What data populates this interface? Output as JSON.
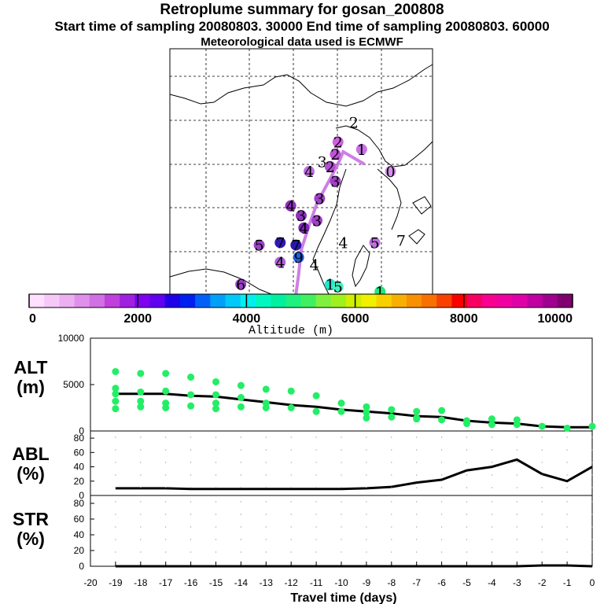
{
  "header": {
    "title": "Retroplume summary for gosan_200808",
    "sampling": "Start time of sampling 20080803. 30000     End time of sampling 20080803. 60000",
    "met": "Meteorological data used is ECMWF"
  },
  "map": {
    "markers": [
      {
        "label": "2",
        "lon": 0.7,
        "lat": 0.3,
        "color": "#ffffff"
      },
      {
        "label": "2",
        "lon": 0.64,
        "lat": 0.38,
        "color": "#d060e0"
      },
      {
        "label": "2",
        "lon": 0.63,
        "lat": 0.43,
        "color": "#c050d8"
      },
      {
        "label": "1",
        "lon": 0.73,
        "lat": 0.41,
        "color": "#c870e8"
      },
      {
        "label": "3",
        "lon": 0.58,
        "lat": 0.46,
        "color": "#ffffff"
      },
      {
        "label": "2",
        "lon": 0.61,
        "lat": 0.48,
        "color": "#b050d0"
      },
      {
        "label": "4",
        "lon": 0.53,
        "lat": 0.5,
        "color": "#c070e0"
      },
      {
        "label": "0",
        "lon": 0.84,
        "lat": 0.5,
        "color": "#d090e8"
      },
      {
        "label": "3",
        "lon": 0.63,
        "lat": 0.54,
        "color": "#a040c8"
      },
      {
        "label": "3",
        "lon": 0.57,
        "lat": 0.61,
        "color": "#a040c8"
      },
      {
        "label": "4",
        "lon": 0.46,
        "lat": 0.64,
        "color": "#9030c0"
      },
      {
        "label": "3",
        "lon": 0.5,
        "lat": 0.68,
        "color": "#9030c0"
      },
      {
        "label": "3",
        "lon": 0.56,
        "lat": 0.7,
        "color": "#a040c8"
      },
      {
        "label": "4",
        "lon": 0.51,
        "lat": 0.73,
        "color": "#7a28b8"
      },
      {
        "label": "7",
        "lon": 0.42,
        "lat": 0.79,
        "color": "#3018b0"
      },
      {
        "label": "7",
        "lon": 0.48,
        "lat": 0.8,
        "color": "#2818a8"
      },
      {
        "label": "5",
        "lon": 0.34,
        "lat": 0.8,
        "color": "#9a40c8"
      },
      {
        "label": "4",
        "lon": 0.66,
        "lat": 0.79,
        "color": "#ffffff"
      },
      {
        "label": "5",
        "lon": 0.78,
        "lat": 0.79,
        "color": "#c070e0"
      },
      {
        "label": "7",
        "lon": 0.88,
        "lat": 0.78,
        "color": "#ffffff"
      },
      {
        "label": "9",
        "lon": 0.49,
        "lat": 0.85,
        "color": "#2060d8"
      },
      {
        "label": "4",
        "lon": 0.42,
        "lat": 0.87,
        "color": "#b060d8"
      },
      {
        "label": "4",
        "lon": 0.55,
        "lat": 0.88,
        "color": "#ffffff"
      },
      {
        "label": "6",
        "lon": 0.27,
        "lat": 0.96,
        "color": "#9a40c8"
      },
      {
        "label": "1",
        "lon": 0.61,
        "lat": 0.96,
        "color": "#20e8d0"
      },
      {
        "label": "5",
        "lon": 0.64,
        "lat": 0.97,
        "color": "#40f0c0"
      },
      {
        "label": "1",
        "lon": 0.8,
        "lat": 0.99,
        "color": "#20e880"
      }
    ]
  },
  "colorbar": {
    "labels": [
      "0",
      "2000",
      "4000",
      "6000",
      "8000",
      "10000"
    ],
    "title": "Altitude (m)",
    "colors": [
      "#ffe0ff",
      "#f5c8f8",
      "#ecb0f2",
      "#e090ea",
      "#d070e4",
      "#c040dc",
      "#a020e0",
      "#8000f0",
      "#6000f0",
      "#2000e8",
      "#0020f0",
      "#0060f8",
      "#00a0f8",
      "#00c8f8",
      "#00f0f0",
      "#00f8c0",
      "#00f0a0",
      "#20f080",
      "#40f060",
      "#80f040",
      "#a0f020",
      "#d0f000",
      "#f0f000",
      "#f8d000",
      "#f8b000",
      "#f89000",
      "#f87000",
      "#f84000",
      "#f80000",
      "#f80060",
      "#f80090",
      "#f000a0",
      "#e000a8",
      "#c000a0",
      "#a00090",
      "#800070"
    ]
  },
  "panels": {
    "alt": {
      "label": "ALT\n(m)",
      "ticks": [
        "10000",
        "5000",
        "0"
      ]
    },
    "abl": {
      "label": "ABL\n(%)",
      "ticks": [
        "80",
        "60",
        "40",
        "20",
        "0"
      ]
    },
    "str": {
      "label": "STR\n(%)",
      "ticks": [
        "80",
        "60",
        "40",
        "20",
        "0"
      ]
    }
  },
  "chart_data": [
    {
      "type": "line",
      "title": "ALT (m)",
      "xlabel": "Travel time (days)",
      "ylabel": "ALT (m)",
      "xlim": [
        -20,
        0
      ],
      "ylim": [
        0,
        10000
      ],
      "series": [
        {
          "name": "median altitude",
          "x": [
            -19,
            -18,
            -17,
            -16,
            -15,
            -14,
            -13,
            -12,
            -11,
            -10,
            -9,
            -8,
            -7,
            -6,
            -5,
            -4,
            -3,
            -2,
            -1,
            0
          ],
          "values": [
            4000,
            4000,
            4000,
            3800,
            3700,
            3400,
            3100,
            2800,
            2600,
            2300,
            2100,
            1900,
            1600,
            1500,
            1100,
            900,
            800,
            500,
            400,
            400
          ]
        },
        {
          "name": "scatter",
          "type": "scatter",
          "color": "#22ee66",
          "x": [
            -19,
            -19,
            -19,
            -19,
            -19,
            -18,
            -18,
            -18,
            -18,
            -17,
            -17,
            -17,
            -17,
            -16,
            -16,
            -16,
            -15,
            -15,
            -15,
            -15,
            -14,
            -14,
            -14,
            -13,
            -13,
            -13,
            -12,
            -12,
            -11,
            -11,
            -10,
            -10,
            -9,
            -9,
            -9,
            -8,
            -8,
            -7,
            -7,
            -7,
            -6,
            -6,
            -5,
            -5,
            -4,
            -4,
            -3,
            -3,
            -2,
            -1,
            0
          ],
          "values": [
            6400,
            4600,
            4000,
            3200,
            2400,
            6200,
            4200,
            3200,
            2600,
            6200,
            4300,
            3000,
            2500,
            5800,
            3900,
            2700,
            5300,
            3900,
            3000,
            2400,
            4900,
            3600,
            2600,
            4500,
            3000,
            2500,
            4300,
            2500,
            3800,
            2100,
            3000,
            2100,
            2600,
            2000,
            1400,
            2300,
            1500,
            2100,
            1400,
            1300,
            2200,
            1200,
            1100,
            800,
            1300,
            700,
            1200,
            700,
            500,
            300,
            500
          ]
        }
      ]
    },
    {
      "type": "line",
      "title": "ABL (%)",
      "ylabel": "ABL (%)",
      "xlim": [
        -20,
        0
      ],
      "ylim": [
        0,
        90
      ],
      "series": [
        {
          "name": "ABL",
          "x": [
            -19,
            -18,
            -17,
            -16,
            -15,
            -14,
            -13,
            -12,
            -11,
            -10,
            -9,
            -8,
            -7,
            -6,
            -5,
            -4,
            -3,
            -2,
            -1,
            0
          ],
          "values": [
            10,
            10,
            10,
            9,
            9,
            9,
            9,
            9,
            9,
            9,
            10,
            12,
            18,
            22,
            35,
            40,
            50,
            30,
            20,
            40
          ]
        }
      ]
    },
    {
      "type": "line",
      "title": "STR (%)",
      "ylabel": "STR (%)",
      "xlabel": "Travel time (days)",
      "xlim": [
        -20,
        0
      ],
      "ylim": [
        0,
        90
      ],
      "x_ticks": [
        "-20",
        "-19",
        "-18",
        "-17",
        "-16",
        "-15",
        "-14",
        "-13",
        "-12",
        "-11",
        "-10",
        "-9",
        "-8",
        "-7",
        "-6",
        "-5",
        "-4",
        "-3",
        "-2",
        "-1",
        "0"
      ],
      "series": [
        {
          "name": "STR",
          "x": [
            -19,
            -18,
            -17,
            -16,
            -15,
            -14,
            -13,
            -12,
            -11,
            -10,
            -9,
            -8,
            -7,
            -6,
            -5,
            -4,
            -3,
            -2,
            -1,
            0
          ],
          "values": [
            0,
            0,
            0,
            0,
            0,
            0,
            0,
            0,
            0,
            0,
            0,
            0,
            0,
            0,
            0,
            0,
            0,
            1,
            1,
            0
          ]
        }
      ]
    }
  ]
}
